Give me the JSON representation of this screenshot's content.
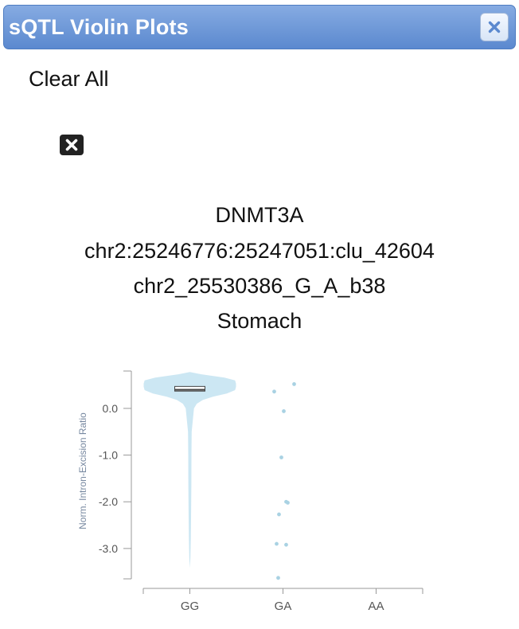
{
  "window": {
    "title": "sQTL Violin Plots",
    "close_icon": "close-icon"
  },
  "toolbar": {
    "clear_all_label": "Clear All",
    "remove_icon": "close-icon"
  },
  "plot": {
    "title_lines": [
      "DNMT3A",
      "chr2:25246776:25247051:clu_42604",
      "chr2_25530386_G_A_b38",
      "Stomach"
    ]
  },
  "colors": {
    "violin_fill": "#cce7f3",
    "point": "#a9d2e3",
    "axis": "#999999",
    "median": "#444444",
    "ylabel": "#7788a0",
    "titlebar": "#5b89cf"
  },
  "chart_data": {
    "type": "violin",
    "ylabel": "Norm. Intron-Excision Ratio",
    "categories": [
      "GG",
      "GA",
      "AA"
    ],
    "yticks": [
      "0.0",
      "-1.0",
      "-2.0",
      "-3.0"
    ],
    "ytick_values": [
      0.0,
      -1.0,
      -2.0,
      -3.0
    ],
    "ylim": [
      -3.65,
      0.8
    ],
    "violins": [
      {
        "category": "GG",
        "median": 0.4,
        "q1": 0.37,
        "q3": 0.47,
        "density": [
          [
            0.78,
            0.0
          ],
          [
            0.73,
            0.25
          ],
          [
            0.66,
            0.75
          ],
          [
            0.6,
            0.98
          ],
          [
            0.53,
            1.0
          ],
          [
            0.46,
            1.0
          ],
          [
            0.39,
            0.98
          ],
          [
            0.32,
            0.8
          ],
          [
            0.25,
            0.5
          ],
          [
            0.18,
            0.28
          ],
          [
            0.1,
            0.15
          ],
          [
            0.0,
            0.09
          ],
          [
            -0.5,
            0.04
          ],
          [
            -1.0,
            0.035
          ],
          [
            -1.6,
            0.032
          ],
          [
            -2.2,
            0.028
          ],
          [
            -2.8,
            0.02
          ],
          [
            -3.2,
            0.012
          ],
          [
            -3.42,
            0.0
          ]
        ]
      }
    ],
    "points": [
      {
        "category": "GA",
        "y": 0.52
      },
      {
        "category": "GA",
        "y": 0.36
      },
      {
        "category": "GA",
        "y": -0.06
      },
      {
        "category": "GA",
        "y": -1.05
      },
      {
        "category": "GA",
        "y": -2.0
      },
      {
        "category": "GA",
        "y": -2.02
      },
      {
        "category": "GA",
        "y": -2.27
      },
      {
        "category": "GA",
        "y": -2.9
      },
      {
        "category": "GA",
        "y": -2.92
      },
      {
        "category": "GA",
        "y": -3.63
      }
    ]
  }
}
